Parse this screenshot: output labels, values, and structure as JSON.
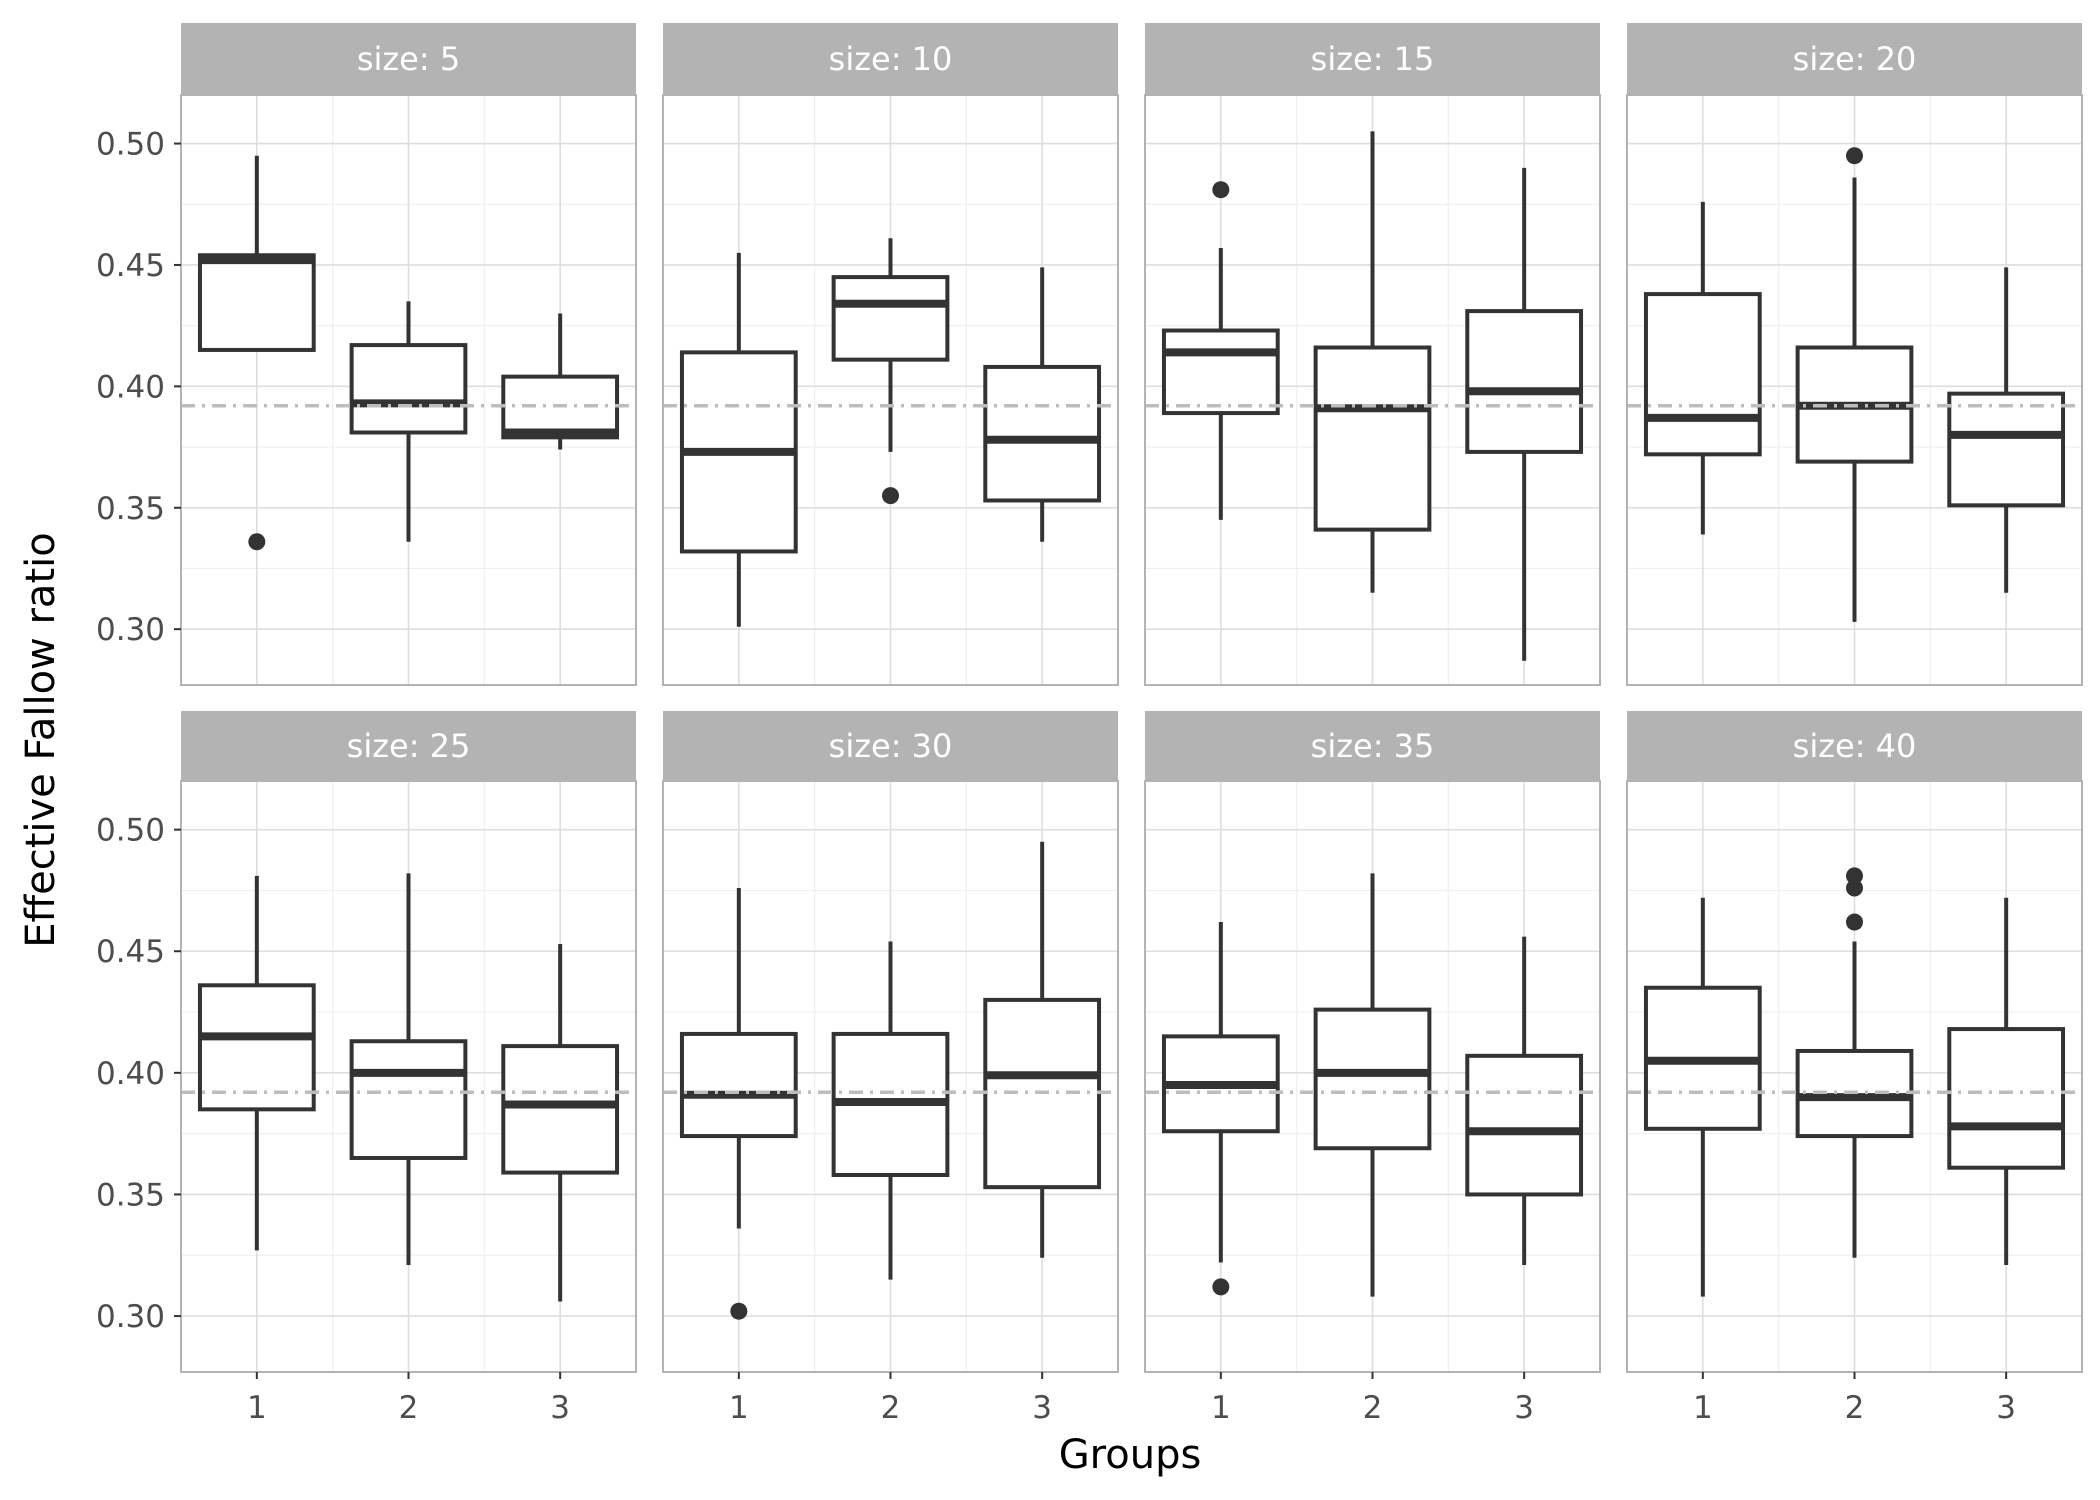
{
  "chart_data": {
    "type": "box",
    "xlabel": "Groups",
    "ylabel": "Effective Fallow ratio",
    "ylim": [
      0.277,
      0.52
    ],
    "yticks": [
      0.3,
      0.35,
      0.4,
      0.45,
      0.5
    ],
    "ytick_labels": [
      "0.30",
      "0.35",
      "0.40",
      "0.45",
      "0.50"
    ],
    "categories": [
      "1",
      "2",
      "3"
    ],
    "reference_line": 0.392,
    "grid": true,
    "layout": "2 rows x 4 columns facets",
    "panels": [
      {
        "label": "size: 5",
        "groups": [
          {
            "group": "1",
            "lower": 0.415,
            "q1": 0.415,
            "median": 0.452,
            "q3": 0.454,
            "upper": 0.495,
            "outliers": [
              0.336
            ]
          },
          {
            "group": "2",
            "lower": 0.336,
            "q1": 0.381,
            "median": 0.393,
            "q3": 0.417,
            "upper": 0.435,
            "outliers": []
          },
          {
            "group": "3",
            "lower": 0.374,
            "q1": 0.379,
            "median": 0.381,
            "q3": 0.404,
            "upper": 0.43,
            "outliers": []
          }
        ]
      },
      {
        "label": "size: 10",
        "groups": [
          {
            "group": "1",
            "lower": 0.301,
            "q1": 0.332,
            "median": 0.373,
            "q3": 0.414,
            "upper": 0.455,
            "outliers": []
          },
          {
            "group": "2",
            "lower": 0.373,
            "q1": 0.411,
            "median": 0.434,
            "q3": 0.445,
            "upper": 0.461,
            "outliers": [
              0.355
            ]
          },
          {
            "group": "3",
            "lower": 0.336,
            "q1": 0.353,
            "median": 0.378,
            "q3": 0.408,
            "upper": 0.449,
            "outliers": []
          }
        ]
      },
      {
        "label": "size: 15",
        "groups": [
          {
            "group": "1",
            "lower": 0.345,
            "q1": 0.389,
            "median": 0.414,
            "q3": 0.423,
            "upper": 0.457,
            "outliers": [
              0.481
            ]
          },
          {
            "group": "2",
            "lower": 0.315,
            "q1": 0.341,
            "median": 0.391,
            "q3": 0.416,
            "upper": 0.505,
            "outliers": []
          },
          {
            "group": "3",
            "lower": 0.287,
            "q1": 0.373,
            "median": 0.398,
            "q3": 0.431,
            "upper": 0.49,
            "outliers": []
          }
        ]
      },
      {
        "label": "size: 20",
        "groups": [
          {
            "group": "1",
            "lower": 0.339,
            "q1": 0.372,
            "median": 0.387,
            "q3": 0.438,
            "upper": 0.476,
            "outliers": []
          },
          {
            "group": "2",
            "lower": 0.303,
            "q1": 0.369,
            "median": 0.392,
            "q3": 0.416,
            "upper": 0.486,
            "outliers": [
              0.495
            ]
          },
          {
            "group": "3",
            "lower": 0.315,
            "q1": 0.351,
            "median": 0.38,
            "q3": 0.397,
            "upper": 0.449,
            "outliers": []
          }
        ]
      },
      {
        "label": "size: 25",
        "groups": [
          {
            "group": "1",
            "lower": 0.327,
            "q1": 0.385,
            "median": 0.415,
            "q3": 0.436,
            "upper": 0.481,
            "outliers": []
          },
          {
            "group": "2",
            "lower": 0.321,
            "q1": 0.365,
            "median": 0.4,
            "q3": 0.413,
            "upper": 0.482,
            "outliers": []
          },
          {
            "group": "3",
            "lower": 0.306,
            "q1": 0.359,
            "median": 0.387,
            "q3": 0.411,
            "upper": 0.453,
            "outliers": []
          }
        ]
      },
      {
        "label": "size: 30",
        "groups": [
          {
            "group": "1",
            "lower": 0.336,
            "q1": 0.374,
            "median": 0.391,
            "q3": 0.416,
            "upper": 0.476,
            "outliers": [
              0.302
            ]
          },
          {
            "group": "2",
            "lower": 0.315,
            "q1": 0.358,
            "median": 0.388,
            "q3": 0.416,
            "upper": 0.454,
            "outliers": []
          },
          {
            "group": "3",
            "lower": 0.324,
            "q1": 0.353,
            "median": 0.399,
            "q3": 0.43,
            "upper": 0.495,
            "outliers": []
          }
        ]
      },
      {
        "label": "size: 35",
        "groups": [
          {
            "group": "1",
            "lower": 0.322,
            "q1": 0.376,
            "median": 0.395,
            "q3": 0.415,
            "upper": 0.462,
            "outliers": [
              0.312
            ]
          },
          {
            "group": "2",
            "lower": 0.308,
            "q1": 0.369,
            "median": 0.4,
            "q3": 0.426,
            "upper": 0.482,
            "outliers": []
          },
          {
            "group": "3",
            "lower": 0.321,
            "q1": 0.35,
            "median": 0.376,
            "q3": 0.407,
            "upper": 0.456,
            "outliers": []
          }
        ]
      },
      {
        "label": "size: 40",
        "groups": [
          {
            "group": "1",
            "lower": 0.308,
            "q1": 0.377,
            "median": 0.405,
            "q3": 0.435,
            "upper": 0.472,
            "outliers": []
          },
          {
            "group": "2",
            "lower": 0.324,
            "q1": 0.374,
            "median": 0.39,
            "q3": 0.409,
            "upper": 0.454,
            "outliers": [
              0.462,
              0.476,
              0.481
            ]
          },
          {
            "group": "3",
            "lower": 0.321,
            "q1": 0.361,
            "median": 0.378,
            "q3": 0.418,
            "upper": 0.472,
            "outliers": []
          }
        ]
      }
    ]
  },
  "colors": {
    "strip_bg": "#b3b3b3",
    "strip_text": "#ffffff",
    "panel_border": "#b3b3b3",
    "grid_major": "#dedede",
    "grid_minor": "#efefef",
    "box_stroke": "#333333",
    "reference_line": "#bdbdbd",
    "tick_text": "#4d4d4d"
  }
}
